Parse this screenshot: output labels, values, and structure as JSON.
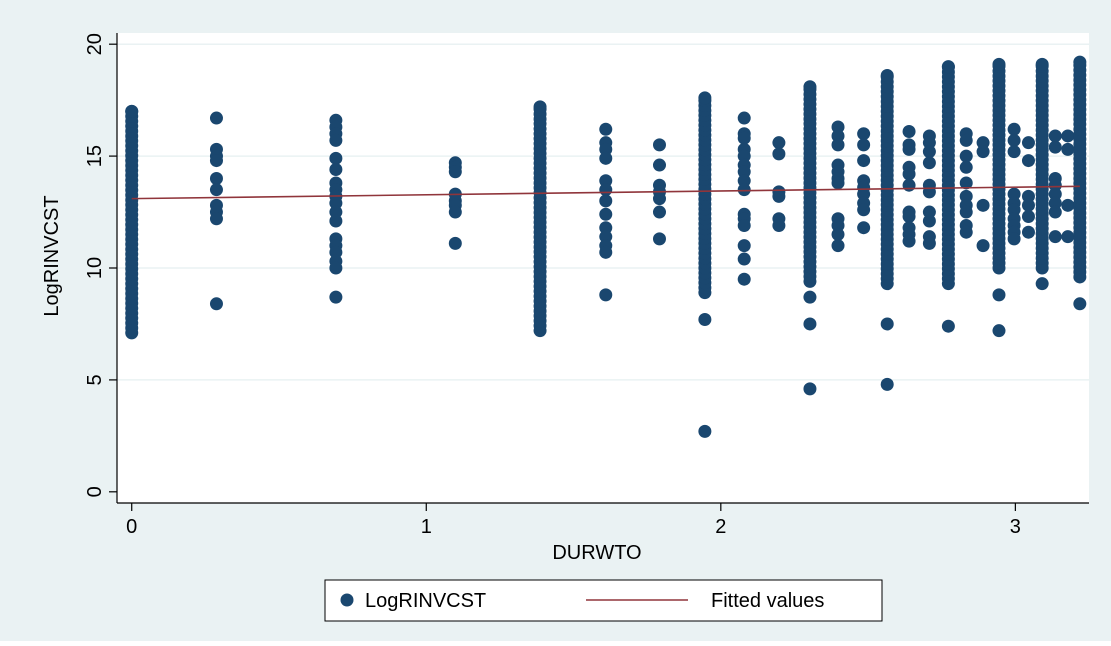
{
  "chart_data": {
    "type": "scatter",
    "title": "",
    "xlabel": "DURWTO",
    "ylabel": "LogRINVCST",
    "xlim": [
      -0.05,
      3.25
    ],
    "ylim": [
      -0.5,
      20.5
    ],
    "xticks": [
      0,
      1,
      2,
      3
    ],
    "yticks": [
      0,
      5,
      10,
      15,
      20
    ],
    "grid": true,
    "legend_position": "bottom-center",
    "colors": {
      "page_bg": "#eaf2f3",
      "plot_bg": "#ffffff",
      "grid": "#eaf2f3",
      "points": "#1a476f",
      "fit_line": "#90353b"
    },
    "series": [
      {
        "name": "LogRINVCST",
        "kind": "scatter",
        "columns": [
          {
            "x": 0,
            "ymin": 7.1,
            "ymax": 17.0
          },
          {
            "x": 0.2877,
            "y": [
              16.7,
              15.3,
              15.0,
              14.8,
              14.0,
              13.5,
              12.8,
              12.5,
              12.2,
              8.4
            ]
          },
          {
            "x": 0.6931,
            "y": [
              16.6,
              16.3,
              16.0,
              15.7,
              14.9,
              14.4,
              13.8,
              13.5,
              13.2,
              12.9,
              12.5,
              12.1,
              11.3,
              11.0,
              10.7,
              10.3,
              10.0,
              8.7
            ]
          },
          {
            "x": 1.0986,
            "y": [
              14.7,
              14.5,
              14.3,
              13.3,
              13.0,
              12.8,
              12.5,
              11.1
            ]
          },
          {
            "x": 1.3863,
            "ymin": 7.2,
            "ymax": 17.2
          },
          {
            "x": 1.6094,
            "y": [
              16.2,
              15.6,
              15.3,
              14.9,
              13.9,
              13.5,
              13.0,
              12.4,
              11.8,
              11.4,
              11.0,
              10.7,
              8.8
            ]
          },
          {
            "x": 1.7918,
            "y": [
              15.5,
              14.6,
              13.7,
              13.4,
              13.1,
              12.5,
              11.3
            ]
          },
          {
            "x": 1.9459,
            "ymin": 8.9,
            "ymax": 17.6,
            "extra": [
              7.7,
              2.7
            ]
          },
          {
            "x": 2.0794,
            "y": [
              16.7,
              16.0,
              15.8,
              15.3,
              15.0,
              14.6,
              14.3,
              13.9,
              13.5,
              12.4,
              12.2,
              11.9,
              11.0,
              10.4,
              9.5
            ]
          },
          {
            "x": 2.1972,
            "y": [
              15.6,
              15.1,
              13.4,
              13.2,
              12.2,
              11.9
            ]
          },
          {
            "x": 2.3026,
            "ymin": 9.4,
            "ymax": 18.1,
            "extra": [
              8.7,
              7.5,
              4.6
            ]
          },
          {
            "x": 2.3979,
            "y": [
              16.3,
              15.9,
              15.5,
              14.6,
              14.3,
              14.0,
              13.8,
              12.2,
              11.9,
              11.5,
              11.0
            ]
          },
          {
            "x": 2.4849,
            "y": [
              16.0,
              15.5,
              14.8,
              13.9,
              13.6,
              13.3,
              12.9,
              12.6,
              11.8
            ]
          },
          {
            "x": 2.5649,
            "ymin": 9.3,
            "ymax": 18.6,
            "extra": [
              7.5,
              4.8
            ]
          },
          {
            "x": 2.6391,
            "y": [
              16.1,
              15.5,
              15.3,
              14.5,
              14.2,
              13.7,
              12.5,
              12.3,
              11.8,
              11.5,
              11.2
            ]
          },
          {
            "x": 2.7081,
            "y": [
              15.9,
              15.6,
              15.2,
              14.7,
              13.7,
              13.4,
              12.5,
              12.1,
              11.4,
              11.1
            ]
          },
          {
            "x": 2.7726,
            "ymin": 9.3,
            "ymax": 19.0,
            "extra": [
              7.4
            ]
          },
          {
            "x": 2.8332,
            "y": [
              16.0,
              15.7,
              15.0,
              14.5,
              13.8,
              13.2,
              12.8,
              12.5,
              11.9,
              11.6
            ]
          },
          {
            "x": 2.8904,
            "y": [
              15.6,
              15.2,
              12.8,
              11.0
            ]
          },
          {
            "x": 2.9444,
            "ymin": 10.0,
            "ymax": 19.1,
            "extra": [
              8.8,
              7.2
            ]
          },
          {
            "x": 2.9957,
            "y": [
              16.2,
              15.7,
              15.2,
              13.3,
              12.9,
              12.6,
              12.2,
              11.9,
              11.6,
              11.3
            ]
          },
          {
            "x": 3.0445,
            "y": [
              15.6,
              14.8,
              13.2,
              12.8,
              12.3,
              11.6
            ]
          },
          {
            "x": 3.091,
            "ymin": 10.0,
            "ymax": 19.1,
            "extra": [
              9.3
            ]
          },
          {
            "x": 3.1355,
            "y": [
              15.9,
              15.4,
              14.0,
              13.7,
              13.3,
              12.9,
              12.5,
              11.4
            ]
          },
          {
            "x": 3.1781,
            "y": [
              15.9,
              15.3,
              12.8,
              11.4
            ]
          },
          {
            "x": 3.2189,
            "ymin": 9.6,
            "ymax": 19.2,
            "extra": [
              8.4
            ]
          }
        ]
      },
      {
        "name": "Fitted values",
        "kind": "line",
        "x": [
          0,
          3.2189
        ],
        "y": [
          13.1,
          13.65
        ]
      }
    ]
  }
}
